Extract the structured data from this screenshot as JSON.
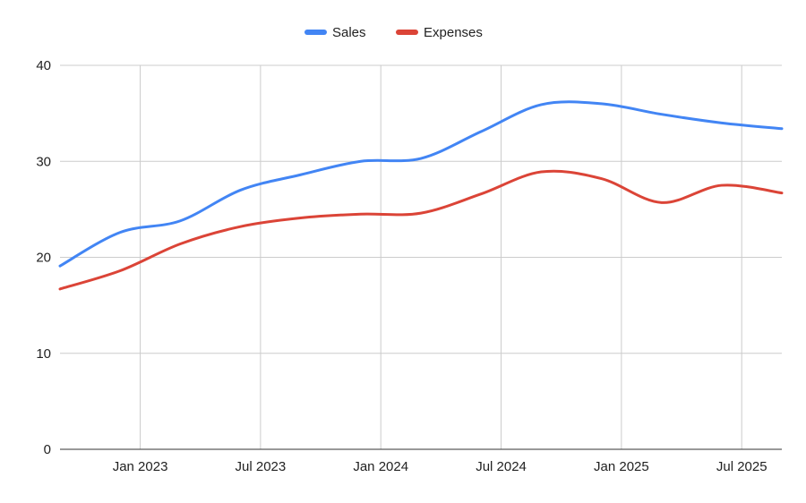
{
  "chart_data": {
    "type": "line",
    "title": "",
    "xlabel": "",
    "ylabel": "",
    "x": [
      "2022-09",
      "2022-12",
      "2023-03",
      "2023-06",
      "2023-09",
      "2023-12",
      "2024-03",
      "2024-06",
      "2024-09",
      "2024-12",
      "2025-03",
      "2025-06",
      "2025-09"
    ],
    "series": [
      {
        "name": "Sales",
        "color": "#4285f4",
        "values": [
          19.1,
          22.6,
          23.8,
          27.0,
          28.6,
          30.0,
          30.3,
          33.1,
          35.9,
          36.0,
          34.9,
          34.0,
          33.4
        ]
      },
      {
        "name": "Expenses",
        "color": "#db4437",
        "values": [
          16.7,
          18.6,
          21.4,
          23.2,
          24.1,
          24.5,
          24.6,
          26.6,
          28.9,
          28.2,
          25.7,
          27.5,
          26.7
        ]
      }
    ],
    "ylim": [
      0,
      40
    ],
    "yticks": [
      0,
      10,
      20,
      30,
      40
    ],
    "xlim": [
      "2022-09",
      "2025-09"
    ],
    "xticks": [
      {
        "date": "2023-01",
        "label": "Jan 2023"
      },
      {
        "date": "2023-07",
        "label": "Jul 2023"
      },
      {
        "date": "2024-01",
        "label": "Jan 2024"
      },
      {
        "date": "2024-07",
        "label": "Jul 2024"
      },
      {
        "date": "2025-01",
        "label": "Jan 2025"
      },
      {
        "date": "2025-07",
        "label": "Jul 2025"
      }
    ],
    "grid": true,
    "smooth": true,
    "legend": "top"
  }
}
